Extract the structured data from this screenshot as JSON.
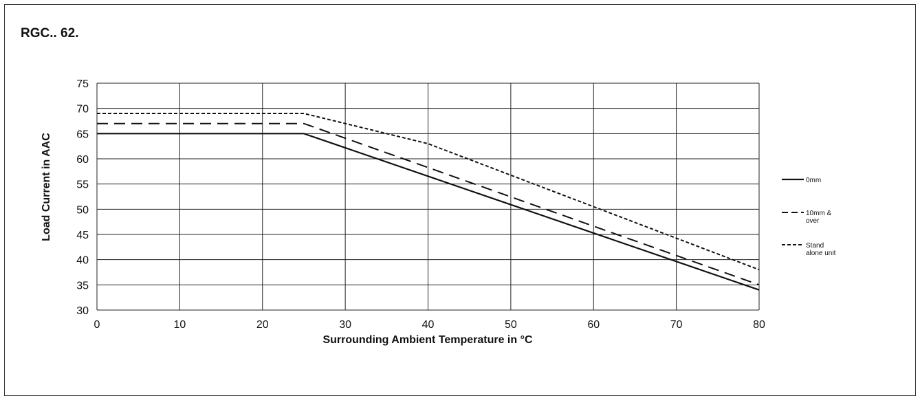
{
  "chart_data": {
    "type": "line",
    "title": "RGC.. 62.",
    "xlabel": "Surrounding Ambient Temperature in °C",
    "ylabel": "Load Current in AAC",
    "xlim": [
      0,
      80
    ],
    "ylim": [
      30,
      75
    ],
    "xticks": [
      0,
      10,
      20,
      30,
      40,
      50,
      60,
      70,
      80
    ],
    "yticks": [
      30,
      35,
      40,
      45,
      50,
      55,
      60,
      65,
      70,
      75
    ],
    "grid": true,
    "legend_position": "right",
    "series": [
      {
        "name": "0mm",
        "line_style": "solid",
        "x": [
          0,
          25,
          80
        ],
        "y": [
          65,
          65,
          34
        ]
      },
      {
        "name": "10mm & over",
        "name_lines": [
          "10mm &",
          "over"
        ],
        "line_style": "dashed",
        "x": [
          0,
          25,
          80
        ],
        "y": [
          67,
          67,
          35
        ]
      },
      {
        "name": "Stand alone unit",
        "name_lines": [
          "Stand",
          "alone unit"
        ],
        "line_style": "dotted",
        "x": [
          0,
          25,
          40,
          80
        ],
        "y": [
          69,
          69,
          63,
          38
        ]
      }
    ],
    "colors": {
      "line": "#111111",
      "grid": "#222222"
    }
  }
}
